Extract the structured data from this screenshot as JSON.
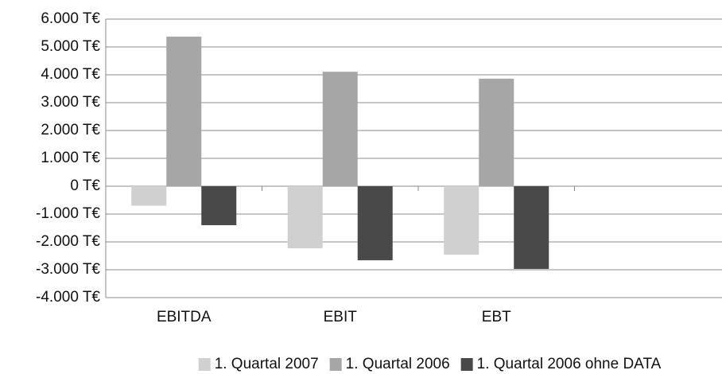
{
  "chart_data": {
    "type": "bar",
    "categories": [
      "EBITDA",
      "EBIT",
      "EBT",
      null
    ],
    "series": [
      {
        "name": "1. Quartal 2007",
        "color": "#d0d0d0",
        "values": [
          -700,
          -2230,
          -2460,
          null
        ]
      },
      {
        "name": "1. Quartal 2006",
        "color": "#a6a6a6",
        "values": [
          5370,
          4110,
          3860,
          null
        ]
      },
      {
        "name": "1. Quartal 2006 ohne DATA",
        "color": "#494949",
        "values": [
          -1400,
          -2660,
          -2970,
          null
        ]
      }
    ],
    "ylim": [
      -4000,
      6000
    ],
    "yticks": [
      {
        "value": -4000,
        "label": "-4.000 T€"
      },
      {
        "value": -3000,
        "label": "-3.000 T€"
      },
      {
        "value": -2000,
        "label": "-2.000 T€"
      },
      {
        "value": -1000,
        "label": "-1.000 T€"
      },
      {
        "value": 0,
        "label": "0 T€"
      },
      {
        "value": 1000,
        "label": "1.000 T€"
      },
      {
        "value": 2000,
        "label": "2.000 T€"
      },
      {
        "value": 3000,
        "label": "3.000 T€"
      },
      {
        "value": 4000,
        "label": "4.000 T€"
      },
      {
        "value": 5000,
        "label": "5.000 T€"
      },
      {
        "value": 6000,
        "label": "6.000 T€"
      }
    ],
    "grid": true
  }
}
